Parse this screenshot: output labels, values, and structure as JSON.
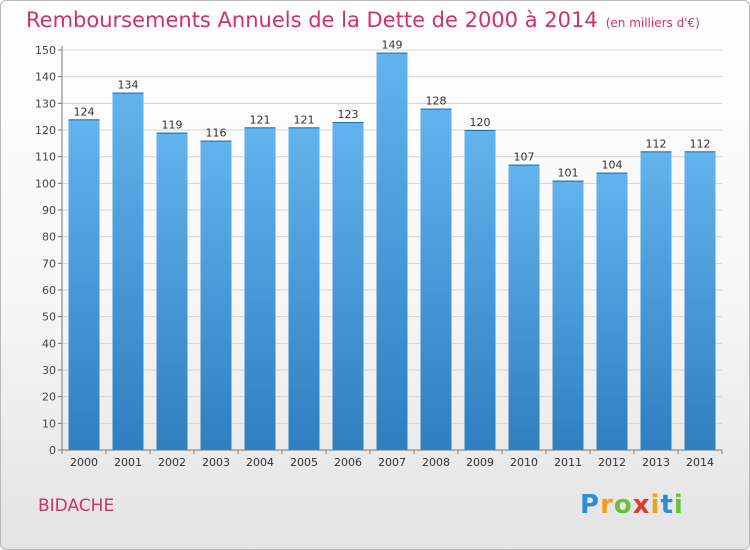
{
  "title": "Remboursements Annuels de la Dette de 2000 à 2014",
  "unit": "(en milliers d'€)",
  "commune": "BIDACHE",
  "logo": {
    "letters": [
      "P",
      "r",
      "o",
      "x",
      "i",
      "t",
      "i"
    ],
    "colors": [
      "#2e8bd8",
      "#f0a020",
      "#6bbf3a",
      "#e23a2a",
      "#f0a020",
      "#2e8bd8",
      "#6bbf3a"
    ]
  },
  "colors": {
    "title": "#d2306a",
    "bar_top": "#62b3ee",
    "bar_bottom": "#2e7fc0"
  },
  "chart_data": {
    "type": "bar",
    "categories": [
      "2000",
      "2001",
      "2002",
      "2003",
      "2004",
      "2005",
      "2006",
      "2007",
      "2008",
      "2009",
      "2010",
      "2011",
      "2012",
      "2013",
      "2014"
    ],
    "values": [
      124,
      134,
      119,
      116,
      121,
      121,
      123,
      149,
      128,
      120,
      107,
      101,
      104,
      112,
      112
    ],
    "ylim": [
      0,
      150
    ],
    "yticks": [
      0,
      10,
      20,
      30,
      40,
      50,
      60,
      70,
      80,
      90,
      100,
      110,
      120,
      130,
      140,
      150
    ],
    "grid": true,
    "data_labels": true
  }
}
